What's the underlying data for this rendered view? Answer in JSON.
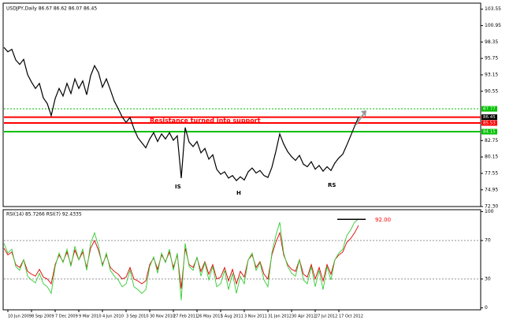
{
  "chart_data": [
    {
      "type": "line",
      "title": "USDJPY,Daily  86.67 86.62 86.07 86.45",
      "xlim": [
        0,
        121
      ],
      "ylim": [
        72.3,
        104.5
      ],
      "yticks": [
        103.55,
        100.95,
        98.35,
        95.75,
        93.15,
        90.55,
        82.75,
        80.15,
        77.55,
        74.95,
        {
          "value": 72.3,
          "label": "72.30"
        }
      ],
      "series": [
        {
          "color": "#000000",
          "values": [
            97.5,
            96.8,
            97.2,
            95.5,
            94.8,
            95.6,
            93.2,
            92.0,
            91.0,
            91.8,
            89.5,
            88.6,
            86.7,
            89.4,
            91.0,
            89.8,
            91.8,
            90.2,
            92.5,
            91.0,
            92.2,
            90.0,
            93.0,
            94.6,
            93.5,
            91.2,
            92.5,
            90.8,
            89.0,
            87.8,
            86.5,
            85.6,
            86.4,
            84.6,
            83.2,
            82.4,
            81.6,
            83.0,
            84.0,
            82.6,
            83.8,
            83.0,
            84.0,
            82.8,
            83.5,
            76.8,
            84.8,
            82.5,
            81.8,
            82.6,
            80.8,
            81.5,
            79.8,
            80.5,
            78.2,
            77.4,
            77.8,
            76.8,
            77.2,
            76.4,
            77.0,
            76.5,
            77.8,
            78.4,
            77.6,
            78.0,
            77.2,
            76.9,
            78.5,
            81.0,
            83.8,
            82.2,
            81.0,
            80.2,
            79.6,
            80.4,
            79.0,
            78.6,
            79.4,
            78.2,
            78.8,
            77.9,
            78.6,
            78.0,
            79.2,
            80.0,
            80.6,
            82.0,
            83.5,
            85.0,
            86.45
          ]
        }
      ],
      "levels": [
        {
          "value": 87.77,
          "color": "#00c000",
          "tag_color": "#00c000",
          "width": 1,
          "dash": "2,2"
        },
        {
          "value": 86.45,
          "color": "#ff0000",
          "tag_color": "#000000",
          "width": 2,
          "dash": "none"
        },
        {
          "value": 85.53,
          "color": "#ff0000",
          "tag_color": "#ff0000",
          "width": 2,
          "dash": "none"
        },
        {
          "value": 84.15,
          "color": "#00c000",
          "tag_color": "#00c000",
          "width": 2,
          "dash": "none"
        }
      ],
      "annotations": [
        "Resistance turned into support",
        "IS",
        "H",
        "RS"
      ]
    },
    {
      "type": "line",
      "title": "RSI(14) 85.7266  RSI(7) 92.4335",
      "xlim": [
        0,
        121
      ],
      "ylim": [
        -2,
        102
      ],
      "yticks": [
        100,
        70,
        30,
        0
      ],
      "xticks": [
        {
          "value": 1,
          "label": "10 Jun 2009"
        },
        {
          "value": 7,
          "label": "8 Sep 2009"
        },
        {
          "value": 13,
          "label": "7 Dec 2009"
        },
        {
          "value": 19,
          "label": "9 Mar 2010"
        },
        {
          "value": 25,
          "label": "4 Jun 2010"
        },
        {
          "value": 31,
          "label": "3 Sep 2010"
        },
        {
          "value": 37,
          "label": "30 Nov 2010"
        },
        {
          "value": 43,
          "label": "27 Feb 2011"
        },
        {
          "value": 49,
          "label": "26 May 2011"
        },
        {
          "value": 55,
          "label": "5 Aug 2011"
        },
        {
          "value": 61,
          "label": "3 Nov 2011"
        },
        {
          "value": 67,
          "label": "31 Jan 2012"
        },
        {
          "value": 73,
          "label": "30 Apr 2012"
        },
        {
          "value": 79,
          "label": "27 Jul 2012"
        },
        {
          "value": 85,
          "label": "17 Oct 2012"
        }
      ],
      "series": [
        {
          "color": "#dd0000",
          "values": [
            62,
            55,
            58,
            45,
            42,
            50,
            38,
            35,
            33,
            40,
            32,
            30,
            25,
            45,
            55,
            48,
            58,
            45,
            60,
            50,
            58,
            42,
            62,
            70,
            60,
            45,
            55,
            42,
            38,
            35,
            30,
            32,
            42,
            30,
            28,
            25,
            28,
            45,
            52,
            40,
            55,
            48,
            58,
            42,
            55,
            20,
            62,
            45,
            42,
            52,
            38,
            48,
            35,
            45,
            30,
            32,
            42,
            28,
            40,
            25,
            38,
            32,
            50,
            55,
            42,
            48,
            35,
            30,
            55,
            68,
            78,
            55,
            45,
            40,
            38,
            50,
            35,
            32,
            45,
            30,
            42,
            28,
            45,
            35,
            50,
            55,
            58,
            68,
            72,
            78,
            85.73
          ]
        },
        {
          "color": "#33cc33",
          "values": [
            67,
            57,
            61,
            43,
            39,
            50,
            33,
            29,
            26,
            36,
            25,
            22,
            15,
            43,
            57,
            47,
            61,
            43,
            64,
            50,
            61,
            39,
            67,
            78,
            64,
            43,
            57,
            39,
            33,
            29,
            22,
            25,
            39,
            22,
            19,
            15,
            19,
            43,
            53,
            36,
            57,
            47,
            61,
            39,
            57,
            8,
            67,
            43,
            39,
            53,
            33,
            47,
            29,
            43,
            22,
            25,
            39,
            19,
            36,
            15,
            33,
            25,
            50,
            57,
            39,
            47,
            29,
            22,
            57,
            75,
            89,
            57,
            43,
            36,
            33,
            50,
            29,
            25,
            43,
            22,
            39,
            19,
            43,
            29,
            50,
            57,
            61,
            75,
            81,
            89,
            92.43
          ]
        }
      ],
      "level": {
        "value": 92,
        "label": "92.00"
      }
    }
  ]
}
